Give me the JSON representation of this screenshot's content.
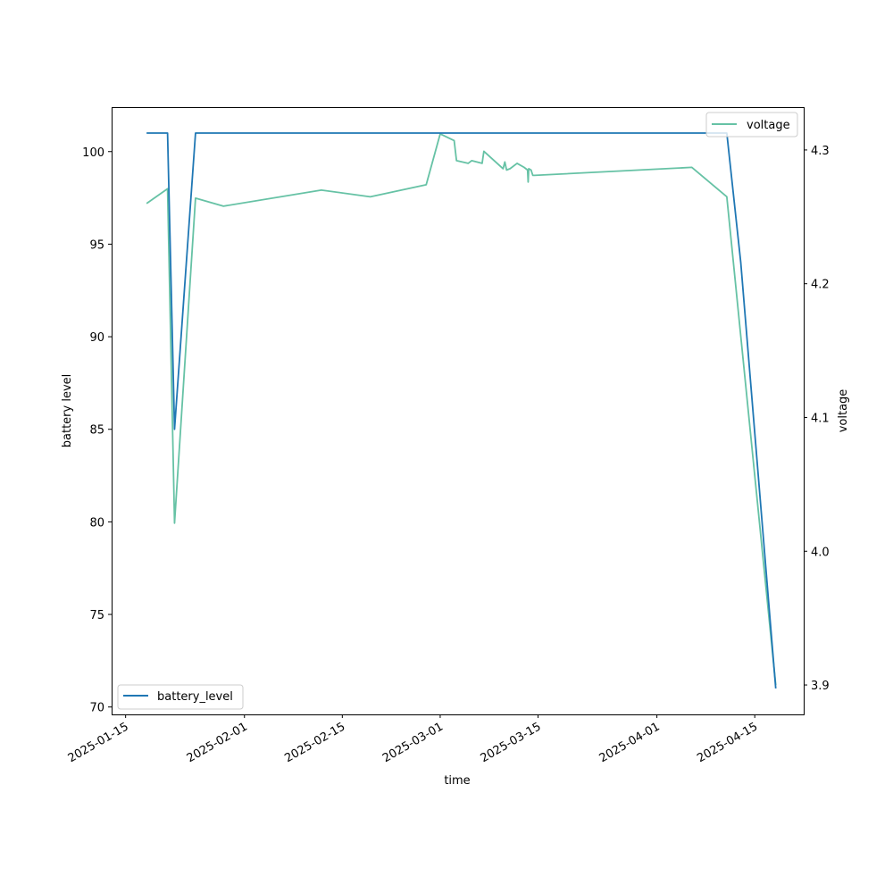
{
  "chart_data": {
    "type": "line",
    "xlabel": "time",
    "ylabel_left": "battery level",
    "ylabel_right": "voltage",
    "x_tick_labels": [
      "2025-01-15",
      "2025-02-01",
      "2025-02-15",
      "2025-03-01",
      "2025-03-15",
      "2025-04-01",
      "2025-04-15"
    ],
    "y_left_ticks": [
      70,
      75,
      80,
      85,
      90,
      95,
      100
    ],
    "y_right_ticks": [
      3.9,
      4.0,
      4.1,
      4.2,
      4.3
    ],
    "xlim": [
      "2025-01-13",
      "2025-04-22"
    ],
    "ylim_left": [
      69.6,
      102.4
    ],
    "ylim_right": [
      3.878,
      4.332
    ],
    "legend_left": {
      "placement": "lower-left"
    },
    "legend_right": {
      "placement": "upper-right"
    },
    "series": [
      {
        "name": "battery_level",
        "axis": "left",
        "color": "#1f77b4",
        "points": [
          [
            "2025-01-18",
            101
          ],
          [
            "2025-01-21",
            101
          ],
          [
            "2025-01-22",
            85
          ],
          [
            "2025-01-25",
            101
          ],
          [
            "2025-03-01",
            101
          ],
          [
            "2025-04-11",
            101
          ],
          [
            "2025-04-13",
            94
          ],
          [
            "2025-04-18",
            71
          ]
        ]
      },
      {
        "name": "voltage",
        "axis": "right",
        "color": "#66c2a5",
        "points": [
          [
            "2025-01-18",
            4.26
          ],
          [
            "2025-01-21",
            4.271
          ],
          [
            "2025-01-22",
            4.021
          ],
          [
            "2025-01-25",
            4.264
          ],
          [
            "2025-01-29",
            4.258
          ],
          [
            "2025-02-12",
            4.27
          ],
          [
            "2025-02-19",
            4.265
          ],
          [
            "2025-02-27",
            4.274
          ],
          [
            "2025-03-01",
            4.312
          ],
          [
            "2025-03-03",
            4.307
          ],
          [
            "2025-03-03 08:00",
            4.292
          ],
          [
            "2025-03-05",
            4.29
          ],
          [
            "2025-03-05 12:00",
            4.292
          ],
          [
            "2025-03-07",
            4.29
          ],
          [
            "2025-03-07 06:00",
            4.299
          ],
          [
            "2025-03-10",
            4.286
          ],
          [
            "2025-03-10 06:00",
            4.291
          ],
          [
            "2025-03-10 12:00",
            4.285
          ],
          [
            "2025-03-11",
            4.286
          ],
          [
            "2025-03-12",
            4.29
          ],
          [
            "2025-03-13",
            4.287
          ],
          [
            "2025-03-13 12:00",
            4.285
          ],
          [
            "2025-03-13 14:00",
            4.276
          ],
          [
            "2025-03-13 16:00",
            4.286
          ],
          [
            "2025-03-14",
            4.285
          ],
          [
            "2025-03-14 06:00",
            4.281
          ],
          [
            "2025-03-14 12:00",
            4.281
          ],
          [
            "2025-04-06",
            4.287
          ],
          [
            "2025-04-11",
            4.265
          ],
          [
            "2025-04-18",
            3.9
          ]
        ]
      }
    ]
  }
}
